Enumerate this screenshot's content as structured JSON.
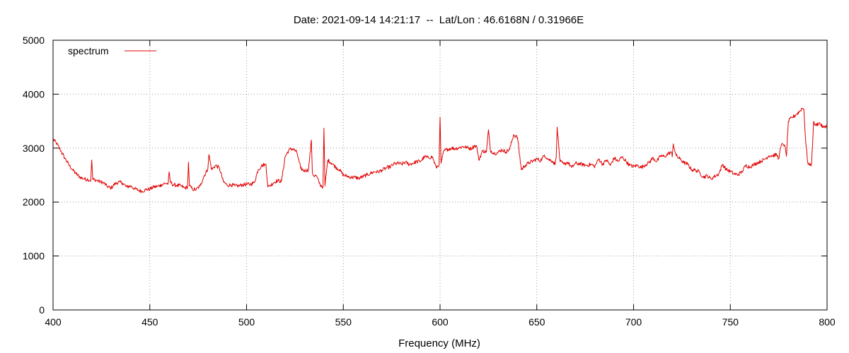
{
  "chart_data": {
    "type": "line",
    "title": "Date: 2021-09-14 14:21:17  --  Lat/Lon : 46.6168N / 0.31966E",
    "xlabel": "Frequency (MHz)",
    "ylabel": "",
    "xlim": [
      400,
      800
    ],
    "ylim": [
      0,
      5000
    ],
    "x_ticks": [
      "400",
      "450",
      "500",
      "550",
      "600",
      "650",
      "700",
      "750",
      "800"
    ],
    "y_ticks": [
      "0",
      "1000",
      "2000",
      "3000",
      "4000",
      "5000"
    ],
    "grid": true,
    "legend_position": "top-left",
    "series_color": "#e00000",
    "series": [
      {
        "name": "spectrum",
        "x": [
          400,
          402,
          404,
          406,
          408,
          410,
          412,
          414,
          416,
          418,
          419.5,
          420,
          420.5,
          422,
          424,
          426,
          428,
          430,
          432,
          434,
          436,
          438,
          440,
          442,
          444,
          446,
          448,
          450,
          452,
          454,
          456,
          458,
          459.5,
          460,
          460.5,
          462,
          464,
          466,
          468,
          469.5,
          470,
          470.5,
          472,
          474,
          476,
          478,
          480,
          480.5,
          482,
          484,
          486,
          488,
          490,
          492,
          494,
          496,
          498,
          500,
          502,
          504,
          506,
          508,
          510,
          511,
          512,
          514,
          516,
          518,
          520,
          522,
          524,
          526,
          528,
          530,
          532,
          533.5,
          534,
          534.5,
          536,
          538,
          539.5,
          540,
          540.5,
          542,
          544,
          546,
          548,
          550,
          552,
          554,
          556,
          558,
          560,
          562,
          564,
          566,
          568,
          570,
          572,
          574,
          576,
          578,
          580,
          582,
          584,
          586,
          588,
          590,
          592,
          594,
          596,
          598,
          599.5,
          600,
          600.5,
          602,
          604,
          606,
          608,
          610,
          612,
          614,
          616,
          618,
          619,
          620,
          622,
          624,
          625,
          626,
          628,
          630,
          632,
          634,
          636,
          638,
          639,
          640,
          642,
          644,
          646,
          648,
          650,
          652,
          654,
          656,
          658,
          659.5,
          660,
          660.5,
          662,
          664,
          666,
          668,
          670,
          672,
          674,
          676,
          678,
          680,
          682,
          684,
          686,
          688,
          690,
          692,
          694,
          696,
          698,
          700,
          702,
          704,
          706,
          708,
          710,
          712,
          714,
          716,
          718,
          719.5,
          720,
          720.5,
          722,
          724,
          726,
          728,
          730,
          732,
          734,
          736,
          738,
          740,
          742,
          744,
          746,
          748,
          750,
          752,
          754,
          756,
          758,
          760,
          762,
          764,
          766,
          768,
          770,
          772,
          774,
          775,
          776,
          777,
          778,
          779,
          780,
          782,
          784,
          786,
          787,
          788,
          789,
          790,
          791,
          792,
          793,
          794,
          796,
          798,
          800
        ],
        "values": [
          3170,
          3080,
          2950,
          2820,
          2700,
          2600,
          2520,
          2460,
          2430,
          2420,
          2400,
          2780,
          2420,
          2410,
          2380,
          2360,
          2290,
          2260,
          2340,
          2370,
          2350,
          2280,
          2300,
          2250,
          2220,
          2200,
          2230,
          2240,
          2280,
          2290,
          2320,
          2350,
          2340,
          2560,
          2380,
          2320,
          2310,
          2300,
          2260,
          2280,
          2740,
          2300,
          2240,
          2230,
          2300,
          2480,
          2620,
          2880,
          2600,
          2680,
          2630,
          2380,
          2310,
          2320,
          2300,
          2300,
          2320,
          2330,
          2330,
          2360,
          2600,
          2680,
          2700,
          2280,
          2300,
          2360,
          2400,
          2380,
          2850,
          2970,
          2990,
          2920,
          2620,
          2580,
          2600,
          3150,
          2560,
          2490,
          2490,
          2320,
          2280,
          3370,
          2300,
          2780,
          2720,
          2650,
          2600,
          2500,
          2480,
          2460,
          2460,
          2440,
          2470,
          2500,
          2530,
          2560,
          2560,
          2590,
          2630,
          2650,
          2700,
          2720,
          2700,
          2740,
          2700,
          2720,
          2750,
          2760,
          2840,
          2820,
          2840,
          2640,
          2700,
          3570,
          2720,
          2950,
          2980,
          3000,
          2990,
          3010,
          3030,
          3010,
          2990,
          3050,
          3020,
          2780,
          2950,
          2930,
          3340,
          2960,
          2900,
          2920,
          2970,
          2930,
          2980,
          3250,
          3220,
          3200,
          2600,
          2680,
          2730,
          2760,
          2800,
          2770,
          2870,
          2790,
          2760,
          2700,
          2820,
          3390,
          2750,
          2700,
          2740,
          2640,
          2720,
          2710,
          2690,
          2680,
          2700,
          2660,
          2800,
          2700,
          2780,
          2680,
          2820,
          2750,
          2840,
          2760,
          2680,
          2660,
          2680,
          2640,
          2690,
          2730,
          2820,
          2750,
          2860,
          2840,
          2900,
          2920,
          2840,
          3080,
          2860,
          2800,
          2730,
          2700,
          2600,
          2590,
          2560,
          2460,
          2490,
          2430,
          2480,
          2520,
          2700,
          2600,
          2570,
          2520,
          2510,
          2560,
          2680,
          2650,
          2690,
          2730,
          2760,
          2800,
          2860,
          2860,
          2880,
          2800,
          3010,
          3080,
          3060,
          2850,
          3500,
          3570,
          3620,
          3690,
          3740,
          3720,
          3100,
          2740,
          2680,
          2700,
          3480,
          3420,
          3470,
          3380,
          3420
        ]
      }
    ]
  }
}
